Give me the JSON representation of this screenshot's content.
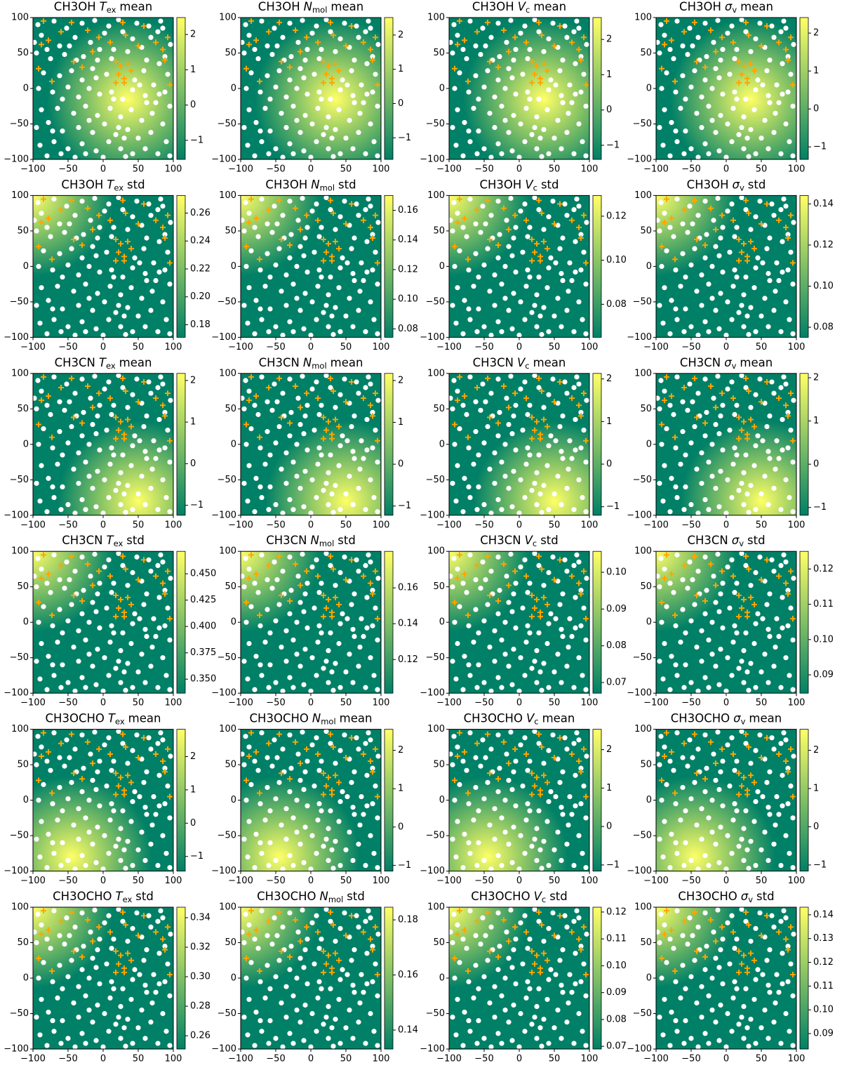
{
  "colormap": [
    "#008066",
    "#80c066",
    "#ffff66"
  ],
  "marker_colors": {
    "points": "#ffffff",
    "crosses": "#ffa500"
  },
  "axes": {
    "xlim": [
      -100,
      100
    ],
    "ylim": [
      -100,
      100
    ],
    "xticks": [
      {
        "value": -100,
        "label": "−100"
      },
      {
        "value": -50,
        "label": "−50"
      },
      0,
      50,
      100
    ],
    "yticks": [
      {
        "value": -100,
        "label": "−100"
      },
      {
        "value": -50,
        "label": "−50"
      },
      0,
      50,
      100
    ]
  },
  "points": {
    "x": [
      -93,
      -70,
      -52,
      -30,
      -12,
      8,
      22,
      48,
      65,
      82,
      -88,
      -62,
      -40,
      -18,
      2,
      15,
      42,
      55,
      78,
      96,
      -95,
      -75,
      -55,
      -28,
      -8,
      12,
      35,
      62,
      80,
      92,
      -85,
      -62,
      -45,
      -30,
      -15,
      5,
      45,
      58,
      72,
      88,
      -92,
      -72,
      -50,
      -35,
      -20,
      -5,
      12,
      28,
      42,
      60,
      75,
      95,
      -88,
      -65,
      -42,
      -25,
      -8,
      10,
      25,
      40,
      55,
      70,
      85,
      -95,
      -78,
      -58,
      -35,
      -15,
      2,
      18,
      35,
      50,
      68,
      90,
      -90,
      -70,
      -50,
      -30,
      -10,
      8,
      25,
      42,
      60,
      78,
      95,
      -80,
      -40,
      0,
      -60,
      30,
      -98,
      -80,
      28,
      68,
      -48,
      -5,
      88,
      -20,
      52,
      -58,
      15,
      80,
      -72,
      -25,
      62,
      32,
      -38,
      85,
      -10,
      22
    ],
    "y": [
      90,
      95,
      85,
      92,
      96,
      88,
      97,
      92,
      88,
      95,
      75,
      60,
      72,
      65,
      78,
      55,
      70,
      58,
      80,
      62,
      50,
      42,
      48,
      45,
      40,
      42,
      52,
      40,
      35,
      20,
      22,
      18,
      25,
      12,
      28,
      20,
      12,
      25,
      5,
      -5,
      0,
      -5,
      2,
      -12,
      0,
      -8,
      -5,
      -15,
      -2,
      -10,
      -20,
      -25,
      -30,
      -28,
      -35,
      -25,
      -38,
      -28,
      -40,
      -30,
      -45,
      -35,
      -50,
      -55,
      -48,
      -60,
      -55,
      -62,
      -50,
      -65,
      -58,
      -70,
      -62,
      -75,
      -80,
      -75,
      -85,
      -78,
      -88,
      -75,
      -85,
      -92,
      -85,
      -92,
      -95,
      -95,
      -97,
      -97,
      -92,
      -70,
      65,
      55,
      80,
      72,
      60,
      55,
      45,
      -45,
      5,
      -15,
      -15,
      -8,
      -60,
      -92,
      -20,
      -96,
      40,
      85,
      15,
      -55
    ]
  },
  "crosses": {
    "x": [
      -85,
      -78,
      -60,
      -45,
      -22,
      -92,
      -73,
      -42,
      -6,
      28,
      32,
      58,
      75,
      85,
      92,
      18,
      25,
      35,
      22,
      30,
      40,
      18,
      30,
      -15,
      95,
      88,
      10,
      -88,
      -30,
      50
    ],
    "y": [
      95,
      68,
      80,
      93,
      82,
      28,
      10,
      38,
      72,
      93,
      75,
      88,
      65,
      55,
      72,
      38,
      32,
      35,
      20,
      14,
      25,
      8,
      8,
      52,
      5,
      40,
      65,
      62,
      30,
      60
    ]
  },
  "chart_data": [
    {
      "type": "heatmap",
      "title": "CH3OH",
      "symbol": "T",
      "subscript": "ex",
      "stat": "mean",
      "peak": [
        35,
        -15
      ],
      "clim": [
        -1.54,
        2.48
      ],
      "cticks": [
        {
          "value": -1,
          "label": "−1"
        },
        0,
        1,
        2
      ]
    },
    {
      "type": "heatmap",
      "title": "CH3OH",
      "symbol": "N",
      "subscript": "mol",
      "stat": "mean",
      "peak": [
        35,
        -15
      ],
      "clim": [
        -1.63,
        2.51
      ],
      "cticks": [
        {
          "value": -1,
          "label": "−1"
        },
        0,
        1,
        2
      ]
    },
    {
      "type": "heatmap",
      "title": "CH3OH",
      "symbol": "V",
      "subscript": "c",
      "stat": "mean",
      "peak": [
        35,
        -15
      ],
      "clim": [
        -1.4,
        2.62
      ],
      "cticks": [
        {
          "value": -1,
          "label": "−1"
        },
        0,
        1,
        2
      ]
    },
    {
      "type": "heatmap",
      "title": "CH3OH",
      "symbol": "σ",
      "subscript": "v",
      "stat": "mean",
      "peak": [
        35,
        -15
      ],
      "clim": [
        -1.33,
        2.41
      ],
      "cticks": [
        {
          "value": -1,
          "label": "−1"
        },
        0,
        1,
        2
      ]
    },
    {
      "type": "heatmap",
      "title": "CH3OH",
      "symbol": "T",
      "subscript": "ex",
      "stat": "std",
      "peak": [
        -100,
        100
      ],
      "clim": [
        0.171,
        0.2726
      ],
      "cticks": [
        0.18,
        {
          "value": 0.2,
          "label": "0.20"
        },
        0.22,
        0.24,
        0.26
      ]
    },
    {
      "type": "heatmap",
      "title": "CH3OH",
      "symbol": "N",
      "subscript": "mol",
      "stat": "std",
      "peak": [
        -100,
        100
      ],
      "clim": [
        0.0743,
        0.17
      ],
      "cticks": [
        0.08,
        {
          "value": 0.1,
          "label": "0.10"
        },
        0.12,
        0.14,
        0.16
      ]
    },
    {
      "type": "heatmap",
      "title": "CH3OH",
      "symbol": "V",
      "subscript": "c",
      "stat": "std",
      "peak": [
        -100,
        100
      ],
      "clim": [
        0.065,
        0.1294
      ],
      "cticks": [
        0.08,
        {
          "value": 0.1,
          "label": "0.10"
        },
        0.12
      ]
    },
    {
      "type": "heatmap",
      "title": "CH3OH",
      "symbol": "σ",
      "subscript": "v",
      "stat": "std",
      "peak": [
        -100,
        100
      ],
      "clim": [
        0.0751,
        0.1441
      ],
      "cticks": [
        0.08,
        {
          "value": 0.1,
          "label": "0.10"
        },
        0.12,
        0.14
      ]
    },
    {
      "type": "heatmap",
      "title": "CH3CN",
      "symbol": "T",
      "subscript": "ex",
      "stat": "mean",
      "peak": [
        50,
        -80
      ],
      "clim": [
        -1.24,
        2.17
      ],
      "cticks": [
        {
          "value": -1,
          "label": "−1"
        },
        0,
        1,
        2
      ]
    },
    {
      "type": "heatmap",
      "title": "CH3CN",
      "symbol": "N",
      "subscript": "mol",
      "stat": "mean",
      "peak": [
        50,
        -80
      ],
      "clim": [
        -1.22,
        2.17
      ],
      "cticks": [
        {
          "value": -1,
          "label": "−1"
        },
        0,
        1,
        2
      ]
    },
    {
      "type": "heatmap",
      "title": "CH3CN",
      "symbol": "V",
      "subscript": "c",
      "stat": "mean",
      "peak": [
        50,
        -80
      ],
      "clim": [
        -1.2,
        2.13
      ],
      "cticks": [
        {
          "value": -1,
          "label": "−1"
        },
        0,
        1,
        2
      ]
    },
    {
      "type": "heatmap",
      "title": "CH3CN",
      "symbol": "σ",
      "subscript": "v",
      "stat": "mean",
      "peak": [
        50,
        -80
      ],
      "clim": [
        -1.18,
        2.1
      ],
      "cticks": [
        {
          "value": -1,
          "label": "−1"
        },
        0,
        1,
        2
      ]
    },
    {
      "type": "heatmap",
      "title": "CH3CN",
      "symbol": "T",
      "subscript": "ex",
      "stat": "std",
      "peak": [
        -100,
        100
      ],
      "clim": [
        0.3367,
        0.4713
      ],
      "cticks": [
        {
          "value": 0.35,
          "label": "0.350"
        },
        0.375,
        {
          "value": 0.4,
          "label": "0.400"
        },
        0.425,
        {
          "value": 0.45,
          "label": "0.450"
        }
      ]
    },
    {
      "type": "heatmap",
      "title": "CH3CN",
      "symbol": "N",
      "subscript": "mol",
      "stat": "std",
      "peak": [
        -100,
        100
      ],
      "clim": [
        0.1012,
        0.1804
      ],
      "cticks": [
        0.12,
        0.14,
        0.16
      ]
    },
    {
      "type": "heatmap",
      "title": "CH3CN",
      "symbol": "V",
      "subscript": "c",
      "stat": "std",
      "peak": [
        -100,
        100
      ],
      "clim": [
        0.0671,
        0.1057
      ],
      "cticks": [
        0.07,
        0.08,
        0.09,
        {
          "value": 0.1,
          "label": "0.10"
        }
      ]
    },
    {
      "type": "heatmap",
      "title": "CH3CN",
      "symbol": "σ",
      "subscript": "v",
      "stat": "std",
      "peak": [
        -100,
        100
      ],
      "clim": [
        0.0848,
        0.125
      ],
      "cticks": [
        0.09,
        {
          "value": 0.1,
          "label": "0.10"
        },
        0.11,
        0.12
      ]
    },
    {
      "type": "heatmap",
      "title": "CH3OCHO",
      "symbol": "T",
      "subscript": "ex",
      "stat": "mean",
      "peak": [
        -45,
        -80
      ],
      "clim": [
        -1.44,
        2.82
      ],
      "cticks": [
        {
          "value": -1,
          "label": "−1"
        },
        0,
        1,
        2
      ]
    },
    {
      "type": "heatmap",
      "title": "CH3OCHO",
      "symbol": "N",
      "subscript": "mol",
      "stat": "mean",
      "peak": [
        -45,
        -80
      ],
      "clim": [
        -1.15,
        2.55
      ],
      "cticks": [
        {
          "value": -1,
          "label": "−1"
        },
        0,
        1,
        2
      ]
    },
    {
      "type": "heatmap",
      "title": "CH3OCHO",
      "symbol": "V",
      "subscript": "c",
      "stat": "mean",
      "peak": [
        -45,
        -80
      ],
      "clim": [
        -1.16,
        2.53
      ],
      "cticks": [
        {
          "value": -1,
          "label": "−1"
        },
        0,
        1,
        2
      ]
    },
    {
      "type": "heatmap",
      "title": "CH3OCHO",
      "symbol": "σ",
      "subscript": "v",
      "stat": "mean",
      "peak": [
        -45,
        -80
      ],
      "clim": [
        -1.16,
        2.55
      ],
      "cticks": [
        {
          "value": -1,
          "label": "−1"
        },
        0,
        1,
        2
      ]
    },
    {
      "type": "heatmap",
      "title": "CH3OCHO",
      "symbol": "T",
      "subscript": "ex",
      "stat": "std",
      "peak": [
        -100,
        100
      ],
      "clim": [
        0.251,
        0.3471
      ],
      "cticks": [
        0.26,
        0.28,
        {
          "value": 0.3,
          "label": "0.30"
        },
        0.32,
        0.34
      ]
    },
    {
      "type": "heatmap",
      "title": "CH3OCHO",
      "symbol": "N",
      "subscript": "mol",
      "stat": "std",
      "peak": [
        -100,
        100
      ],
      "clim": [
        0.1331,
        0.1846
      ],
      "cticks": [
        0.14,
        0.16,
        0.18
      ]
    },
    {
      "type": "heatmap",
      "title": "CH3OCHO",
      "symbol": "V",
      "subscript": "c",
      "stat": "std",
      "peak": [
        -100,
        100
      ],
      "clim": [
        0.069,
        0.1218
      ],
      "cticks": [
        0.07,
        0.08,
        0.09,
        {
          "value": 0.1,
          "label": "0.10"
        },
        0.11,
        0.12
      ]
    },
    {
      "type": "heatmap",
      "title": "CH3OCHO",
      "symbol": "σ",
      "subscript": "v",
      "stat": "std",
      "peak": [
        -100,
        100
      ],
      "clim": [
        0.0835,
        0.1432
      ],
      "cticks": [
        0.09,
        {
          "value": 0.1,
          "label": "0.10"
        },
        0.11,
        0.12,
        0.13,
        0.14
      ]
    }
  ]
}
